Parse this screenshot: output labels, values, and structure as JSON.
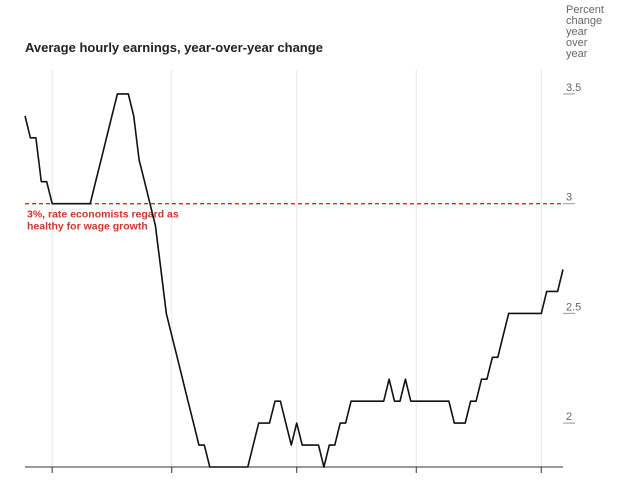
{
  "chart_data": {
    "type": "line",
    "title": "Average hourly earnings, year-over-year change",
    "ylabel_lines": [
      "Percent",
      "change",
      "year",
      "over",
      "year"
    ],
    "ylim": [
      1.8,
      3.6
    ],
    "yticks": [
      {
        "value": 2,
        "label": "2"
      },
      {
        "value": 2.5,
        "label": "2.5"
      },
      {
        "value": 3,
        "label": "3"
      },
      {
        "value": 3.5,
        "label": "3.5"
      }
    ],
    "grid": "vertical",
    "xlim": [
      0,
      99
    ],
    "xticks": [
      5,
      27,
      50,
      72,
      95
    ],
    "reference_line": {
      "value": 3,
      "color": "#d0352b",
      "style": "dashed",
      "label_lines": [
        "3%, rate economists regard as",
        "healthy for wage growth"
      ]
    },
    "series": [
      {
        "color": "#111111",
        "x": [
          0,
          1,
          2,
          3,
          4,
          5,
          6,
          7,
          8,
          9,
          10,
          11,
          12,
          13,
          14,
          15,
          16,
          17,
          18,
          19,
          20,
          21,
          22,
          23,
          24,
          25,
          26,
          27,
          28,
          29,
          30,
          31,
          32,
          33,
          34,
          35,
          36,
          37,
          38,
          39,
          40,
          41,
          42,
          43,
          44,
          45,
          46,
          47,
          48,
          49,
          50,
          51,
          52,
          53,
          54,
          55,
          56,
          57,
          58,
          59,
          60,
          61,
          62,
          63,
          64,
          65,
          66,
          67,
          68,
          69,
          70,
          71,
          72,
          73,
          74,
          75,
          76,
          77,
          78,
          79,
          80,
          81,
          82,
          83,
          84,
          85,
          86,
          87,
          88,
          89,
          90,
          91,
          92,
          93,
          94,
          95,
          96,
          97,
          98,
          99
        ],
        "values": [
          3.4,
          3.3,
          3.3,
          3.1,
          3.1,
          3.0,
          3.0,
          3.0,
          3.0,
          3.0,
          3.0,
          3.0,
          3.0,
          3.1,
          3.2,
          3.3,
          3.4,
          3.5,
          3.5,
          3.5,
          3.4,
          3.2,
          3.1,
          3.0,
          2.9,
          2.7,
          2.5,
          2.4,
          2.3,
          2.2,
          2.1,
          2.0,
          1.9,
          1.9,
          1.8,
          1.8,
          1.8,
          1.8,
          1.8,
          1.8,
          1.8,
          1.8,
          1.9,
          2.0,
          2.0,
          2.0,
          2.1,
          2.1,
          2.0,
          1.9,
          2.0,
          1.9,
          1.9,
          1.9,
          1.9,
          1.8,
          1.9,
          1.9,
          2.0,
          2.0,
          2.1,
          2.1,
          2.1,
          2.1,
          2.1,
          2.1,
          2.1,
          2.2,
          2.1,
          2.1,
          2.2,
          2.1,
          2.1,
          2.1,
          2.1,
          2.1,
          2.1,
          2.1,
          2.1,
          2.0,
          2.0,
          2.0,
          2.1,
          2.1,
          2.2,
          2.2,
          2.3,
          2.3,
          2.4,
          2.5,
          2.5,
          2.5,
          2.5,
          2.5,
          2.5,
          2.5,
          2.6,
          2.6,
          2.6,
          2.7
        ]
      }
    ]
  }
}
